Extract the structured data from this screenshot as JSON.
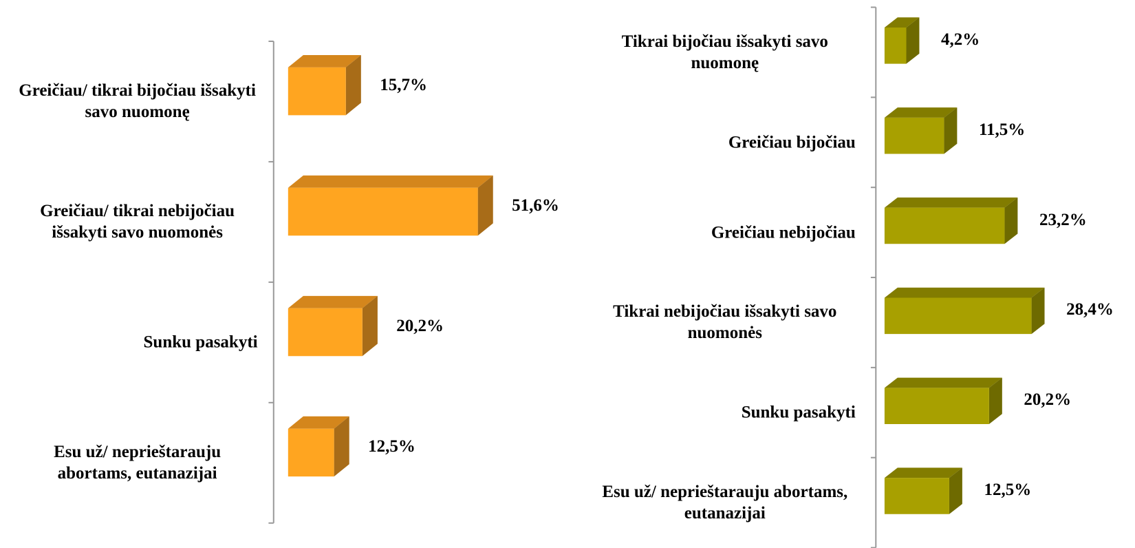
{
  "chart_data": [
    {
      "type": "bar3d",
      "categories": [
        "Greičiau/ tikrai bijočiau išsakyti savo nuomonę",
        "Greičiau/ tikrai nebijočiau išsakyti savo nuomonės",
        "Sunku pasakyti",
        "Esu už/ neprieštarauju abortams, eutanazijai"
      ],
      "values": [
        15.7,
        51.6,
        20.2,
        12.5
      ],
      "value_labels": [
        "15,7%",
        "51,6%",
        "20,2%",
        "12,5%"
      ],
      "color": "#FFA520",
      "top_color": "#D4861C",
      "side_color": "#A86C18"
    },
    {
      "type": "bar3d",
      "categories": [
        "Tikrai bijočiau išsakyti savo nuomonę",
        "Greičiau bijočiau",
        "Greičiau nebijočiau",
        "Tikrai nebijočiau išsakyti savo nuomonės",
        "Sunku pasakyti",
        "Esu už/ neprieštarauju abortams, eutanazijai"
      ],
      "values": [
        4.2,
        11.5,
        23.2,
        28.4,
        20.2,
        12.5
      ],
      "value_labels": [
        "4,2%",
        "11,5%",
        "23,2%",
        "28,4%",
        "20,2%",
        "12,5%"
      ],
      "color": "#A8A000",
      "top_color": "#827C00",
      "side_color": "#6E6A00"
    }
  ]
}
